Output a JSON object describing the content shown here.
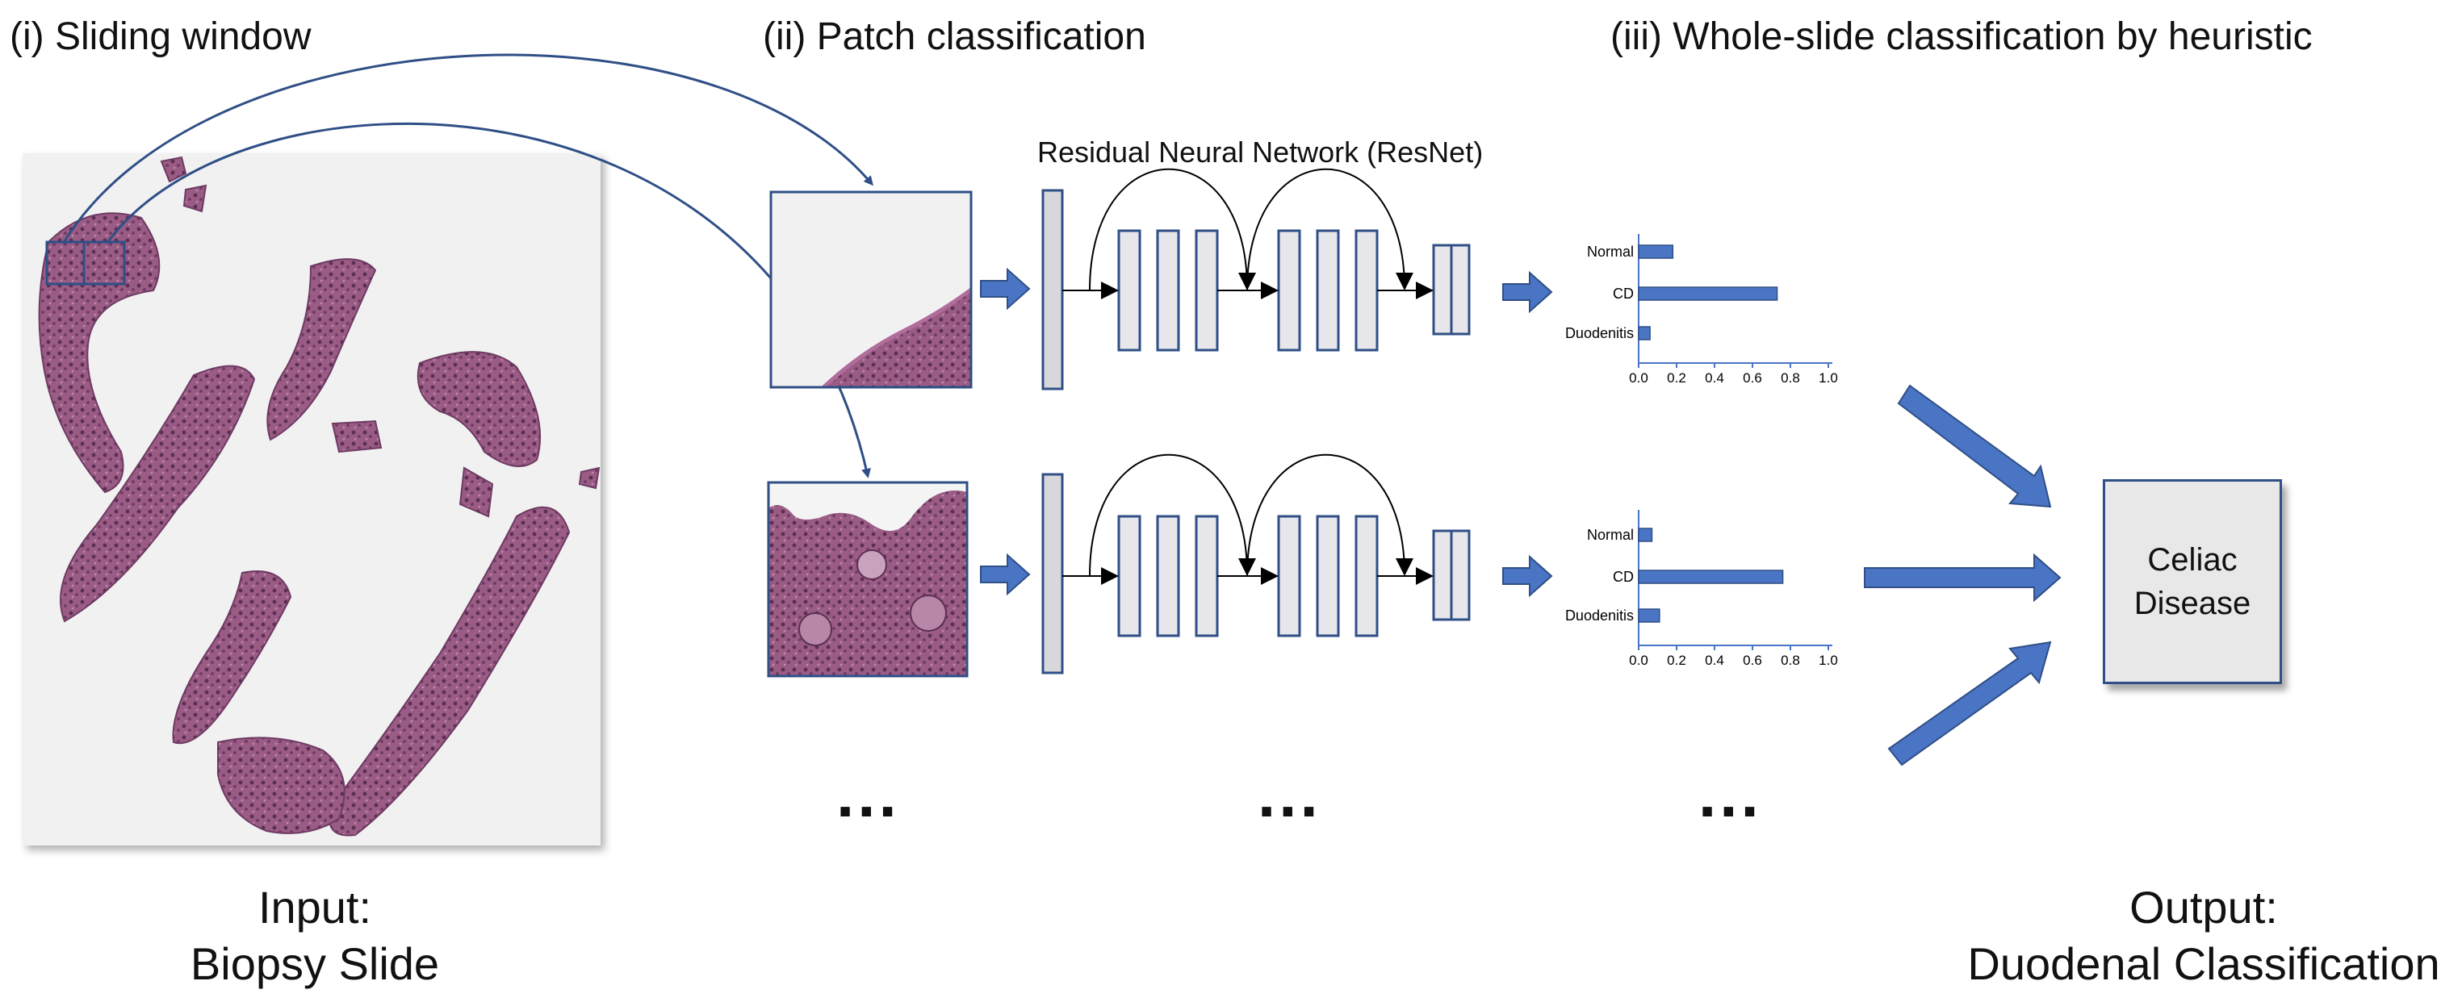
{
  "stages": {
    "sliding_window": "(i) Sliding window",
    "patch_classification": "(ii) Patch classification",
    "whole_slide": "(iii) Whole-slide classification by heuristic"
  },
  "network_label": "Residual Neural Network (ResNet)",
  "input": {
    "line1": "Input:",
    "line2": "Biopsy Slide"
  },
  "output": {
    "line1": "Output:",
    "line2": "Duodenal Classification"
  },
  "result": {
    "line1": "Celiac",
    "line2": "Disease"
  },
  "ellipsis": "...",
  "colors": {
    "arrow": "#4a74c4",
    "outline": "#2f4f86",
    "tissue": "#9a5c84",
    "layer_fill": "#e6e6eb"
  },
  "chart_data": [
    {
      "type": "bar",
      "orientation": "horizontal",
      "categories": [
        "Normal",
        "CD",
        "Duodenitis"
      ],
      "values": [
        0.18,
        0.73,
        0.06
      ],
      "xticks": [
        "0.0",
        "0.2",
        "0.4",
        "0.6",
        "0.8",
        "1.0"
      ],
      "xlim": [
        0,
        1
      ]
    },
    {
      "type": "bar",
      "orientation": "horizontal",
      "categories": [
        "Normal",
        "CD",
        "Duodenitis"
      ],
      "values": [
        0.07,
        0.76,
        0.11
      ],
      "xticks": [
        "0.0",
        "0.2",
        "0.4",
        "0.6",
        "0.8",
        "1.0"
      ],
      "xlim": [
        0,
        1
      ]
    }
  ]
}
